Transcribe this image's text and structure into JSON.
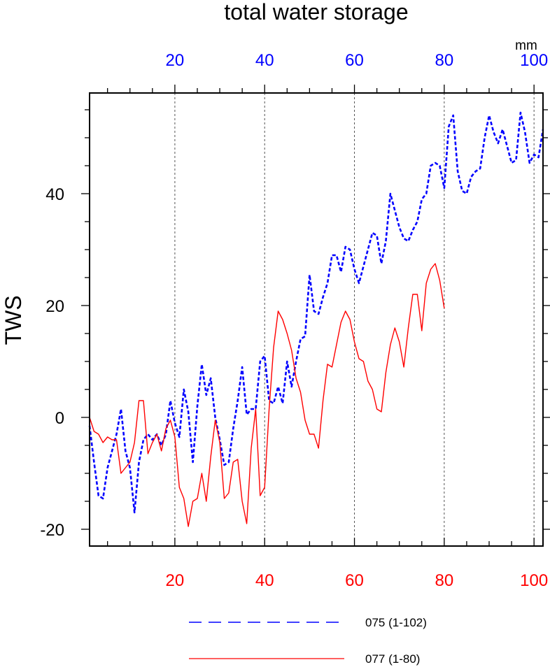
{
  "chart_data": {
    "type": "line",
    "title": "total water storage",
    "ylabel": "TWS",
    "units_label": "mm",
    "ylim": [
      -23,
      58
    ],
    "y_ticks": [
      -20,
      0,
      20,
      40
    ],
    "y_tick_labels": [
      "-20",
      "0",
      "20",
      "40"
    ],
    "grid": "vertical dashed lines at x = 20, 40, 60, 80, 100",
    "x_top": {
      "color": "#0000ff",
      "xlim": [
        1,
        102
      ],
      "ticks": [
        20,
        40,
        60,
        80,
        100
      ],
      "tick_labels": [
        "20",
        "40",
        "60",
        "80",
        "100"
      ]
    },
    "x_bottom": {
      "color": "#ff0000",
      "xlim": [
        1,
        102
      ],
      "ticks": [
        20,
        40,
        60,
        80,
        100
      ],
      "tick_labels": [
        "20",
        "40",
        "60",
        "80",
        "100"
      ]
    },
    "legend_position": "bottom",
    "series": [
      {
        "name": "075 (1-102)",
        "color": "#0000ff",
        "style": "dashed",
        "x_start": 1,
        "values": [
          -1.5,
          -8,
          -14,
          -14.5,
          -9,
          -6,
          -3,
          1.5,
          -6,
          -9,
          -17,
          -8,
          -4,
          -3,
          -4,
          -3,
          -5,
          -3,
          3,
          -1,
          -3.5,
          5,
          1,
          -8,
          2,
          9.5,
          4,
          7,
          0,
          -4,
          -8.5,
          -8,
          -2,
          3,
          9,
          0.5,
          1.5,
          1.5,
          10,
          11,
          3,
          2.5,
          5.5,
          2.5,
          10,
          5.5,
          10,
          14,
          14.5,
          25.5,
          19,
          18.5,
          21.5,
          24,
          29,
          29,
          26,
          30.5,
          30,
          26.5,
          24,
          27,
          30,
          33,
          32.5,
          27.5,
          31.5,
          40,
          37,
          34,
          32,
          31.5,
          33.5,
          35,
          39,
          40,
          45,
          45.5,
          45,
          41,
          52,
          54,
          44,
          40.5,
          40,
          43,
          44,
          44.5,
          50,
          54,
          51,
          49,
          51.5,
          48.5,
          45.5,
          46,
          54.5,
          51,
          45.5,
          47,
          46.5,
          51.5
        ]
      },
      {
        "name": "077 (1-80)",
        "color": "#ff0000",
        "style": "solid",
        "x_start": 1,
        "values": [
          0,
          -2.5,
          -3,
          -4.5,
          -3.5,
          -4,
          -4,
          -10,
          -9,
          -8,
          -4.5,
          3,
          3,
          -6.5,
          -4.5,
          -3,
          -6,
          -2,
          -0.5,
          -3.5,
          -12.5,
          -14.5,
          -19.5,
          -15,
          -14.5,
          -10,
          -15,
          -7,
          -0.5,
          -4.5,
          -14.5,
          -13.5,
          -8,
          -7.5,
          -15,
          -19,
          -5.5,
          1.5,
          -14,
          -12.5,
          1.5,
          12.5,
          19,
          17.5,
          15,
          12,
          7,
          4.5,
          -0.5,
          -3,
          -3,
          -5.5,
          3,
          9.5,
          9,
          13,
          17,
          19,
          17.5,
          13.5,
          10.5,
          10,
          6.5,
          5,
          1.5,
          1,
          8,
          13,
          16,
          13.5,
          9,
          16,
          22,
          22,
          15.5,
          24,
          26.5,
          27.5,
          24.5,
          19.5
        ]
      }
    ]
  }
}
